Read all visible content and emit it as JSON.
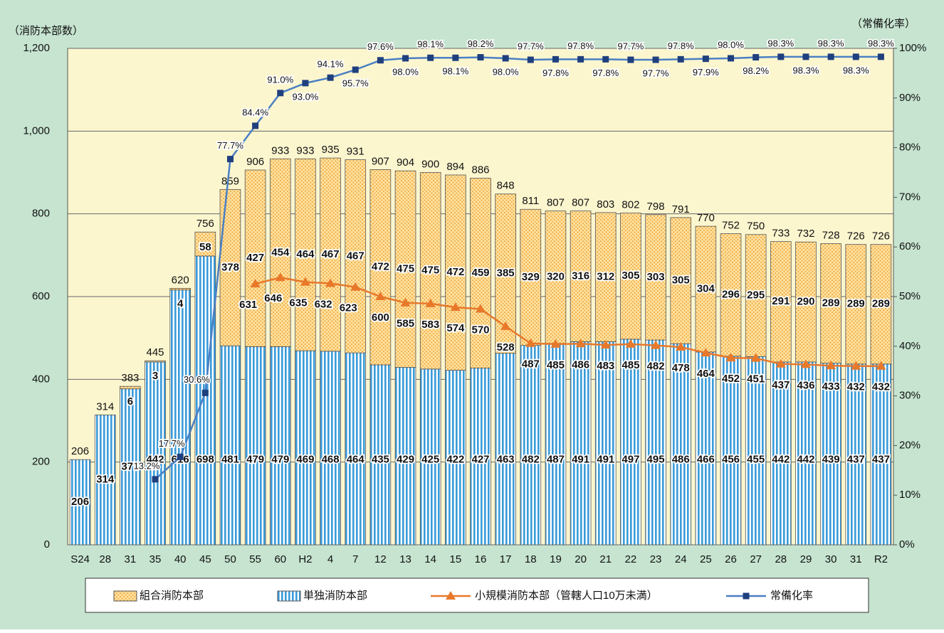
{
  "chart_data": {
    "type": "bar",
    "ylabel": "（消防本部数）",
    "y2label": "（常備化率）",
    "categories": [
      "S24",
      "28",
      "31",
      "35",
      "40",
      "45",
      "50",
      "55",
      "60",
      "H2",
      "4",
      "7",
      "12",
      "13",
      "14",
      "15",
      "16",
      "17",
      "18",
      "19",
      "20",
      "21",
      "22",
      "23",
      "24",
      "25",
      "26",
      "27",
      "28",
      "29",
      "30",
      "31",
      "R2"
    ],
    "totals": [
      206,
      314,
      383,
      445,
      620,
      756,
      859,
      906,
      933,
      933,
      935,
      931,
      907,
      904,
      900,
      894,
      886,
      848,
      811,
      807,
      807,
      803,
      802,
      798,
      791,
      770,
      752,
      750,
      733,
      732,
      728,
      726,
      726
    ],
    "series": [
      {
        "name": "組合消防本部",
        "kind": "bar",
        "color": "#f5a623",
        "values": [
          null,
          null,
          6,
          3,
          4,
          58,
          378,
          427,
          454,
          464,
          467,
          467,
          472,
          475,
          475,
          472,
          459,
          385,
          329,
          320,
          316,
          312,
          305,
          303,
          305,
          304,
          296,
          295,
          291,
          290,
          289,
          289,
          289
        ]
      },
      {
        "name": "単独消防本部",
        "kind": "bar",
        "color": "#3a9bd9",
        "values": [
          206,
          314,
          377,
          442,
          616,
          698,
          481,
          479,
          479,
          469,
          468,
          464,
          435,
          429,
          425,
          422,
          427,
          463,
          482,
          487,
          491,
          491,
          497,
          495,
          486,
          466,
          456,
          455,
          442,
          442,
          439,
          437,
          437
        ]
      },
      {
        "name": "小規模消防本部（管轄人口10万未満）",
        "kind": "line",
        "marker": "triangle",
        "color": "#e8782a",
        "values": [
          null,
          null,
          null,
          null,
          null,
          null,
          null,
          631,
          646,
          635,
          632,
          623,
          600,
          585,
          583,
          574,
          570,
          528,
          487,
          485,
          486,
          483,
          485,
          482,
          478,
          464,
          452,
          451,
          437,
          436,
          433,
          432,
          432
        ]
      },
      {
        "name": "常備化率",
        "kind": "line",
        "marker": "square",
        "axis": "y2",
        "color": "#4a7fc4",
        "values": [
          null,
          null,
          null,
          13.2,
          17.7,
          30.6,
          77.7,
          84.4,
          91.0,
          93.0,
          94.1,
          95.7,
          97.6,
          98.0,
          98.1,
          98.1,
          98.2,
          98.0,
          97.7,
          97.8,
          97.8,
          97.8,
          97.7,
          97.7,
          97.8,
          97.9,
          98.0,
          98.2,
          98.3,
          98.3,
          98.3,
          98.3,
          98.3
        ],
        "value_labels": [
          null,
          null,
          null,
          "13.2%",
          "17.7%",
          "30.6%",
          "77.7%",
          "84.4%",
          "91.0%",
          "93.0%",
          "94.1%",
          "95.7%",
          "97.6%",
          "98.0%",
          "98.1%",
          "98.1%",
          "98.2%",
          "98.0%",
          "97.7%",
          "97.8%",
          "97.8%",
          "97.8%",
          "97.7%",
          "97.7%",
          "97.8%",
          "97.9%",
          "98.0%",
          "98.2%",
          "98.3%",
          "98.3%",
          "98.3%",
          "98.3%",
          "98.3%"
        ]
      }
    ],
    "ylim": [
      0,
      1200
    ],
    "yticks": [
      0,
      200,
      400,
      600,
      800,
      {
        "value": 1000,
        "label": "1,000"
      },
      {
        "value": 1200,
        "label": "1,200"
      }
    ],
    "y2lim": [
      0,
      100
    ],
    "y2ticks": [
      {
        "value": 0,
        "label": "0%"
      },
      {
        "value": 10,
        "label": "10%"
      },
      {
        "value": 20,
        "label": "20%"
      },
      {
        "value": 30,
        "label": "30%"
      },
      {
        "value": 40,
        "label": "40%"
      },
      {
        "value": 50,
        "label": "50%"
      },
      {
        "value": 60,
        "label": "60%"
      },
      {
        "value": 70,
        "label": "70%"
      },
      {
        "value": 80,
        "label": "80%"
      },
      {
        "value": 90,
        "label": "90%"
      },
      {
        "value": 100,
        "label": "100%"
      }
    ],
    "grid": true
  }
}
